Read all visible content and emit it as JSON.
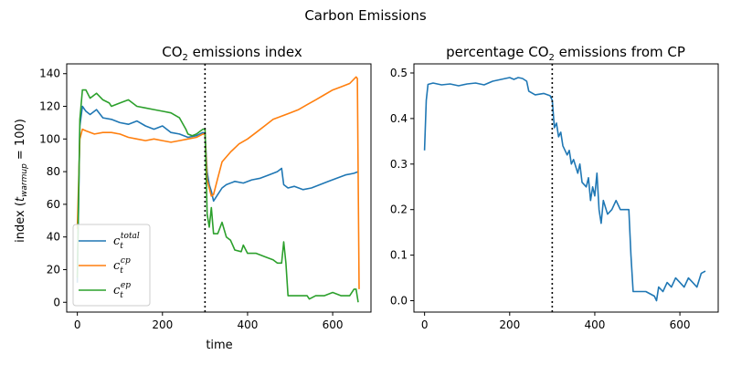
{
  "figure": {
    "suptitle": "Carbon Emissions"
  },
  "chart_data": [
    {
      "type": "line",
      "title": "CO₂ emissions index",
      "xlabel": "time",
      "ylabel": "index (t_warmup = 100)",
      "xlim": [
        -25,
        690
      ],
      "ylim": [
        -6,
        146
      ],
      "xticks": [
        0,
        200,
        400,
        600
      ],
      "yticks": [
        0,
        20,
        40,
        60,
        80,
        100,
        120,
        140
      ],
      "vline_x": 300,
      "legend_position": "lower-left",
      "grid": false,
      "series": [
        {
          "name": "c_t^total",
          "color": "#1f77b4",
          "x": [
            0,
            6,
            12,
            20,
            30,
            45,
            60,
            80,
            100,
            120,
            140,
            160,
            180,
            200,
            220,
            240,
            260,
            280,
            295,
            300,
            305,
            310,
            315,
            320,
            330,
            340,
            350,
            370,
            390,
            410,
            430,
            450,
            470,
            480,
            485,
            495,
            510,
            530,
            550,
            570,
            590,
            610,
            630,
            650,
            660
          ],
          "y": [
            12,
            108,
            120,
            117,
            115,
            118,
            113,
            112,
            110,
            109,
            111,
            108,
            106,
            108,
            104,
            103,
            101,
            102,
            104,
            103,
            80,
            72,
            68,
            62,
            66,
            70,
            72,
            74,
            73,
            75,
            76,
            78,
            80,
            82,
            72,
            70,
            71,
            69,
            70,
            72,
            74,
            76,
            78,
            79,
            80
          ]
        },
        {
          "name": "c_t^cp",
          "color": "#ff7f0e",
          "x": [
            0,
            6,
            12,
            20,
            40,
            60,
            80,
            100,
            120,
            140,
            160,
            180,
            200,
            220,
            240,
            260,
            280,
            295,
            300,
            305,
            310,
            315,
            320,
            330,
            340,
            360,
            380,
            400,
            420,
            440,
            460,
            480,
            500,
            520,
            540,
            560,
            580,
            600,
            620,
            640,
            655,
            658,
            662
          ],
          "y": [
            45,
            100,
            106,
            105,
            103,
            104,
            104,
            103,
            101,
            100,
            99,
            100,
            99,
            98,
            99,
            100,
            101,
            103,
            103,
            75,
            70,
            65,
            66,
            76,
            86,
            92,
            97,
            100,
            104,
            108,
            112,
            114,
            116,
            118,
            121,
            124,
            127,
            130,
            132,
            134,
            138,
            137,
            8
          ]
        },
        {
          "name": "c_t^ep",
          "color": "#2ca02c",
          "x": [
            0,
            6,
            12,
            20,
            30,
            45,
            60,
            75,
            80,
            100,
            120,
            140,
            160,
            180,
            200,
            220,
            240,
            255,
            260,
            270,
            280,
            295,
            300,
            305,
            310,
            315,
            320,
            330,
            340,
            350,
            360,
            370,
            385,
            390,
            400,
            420,
            440,
            460,
            470,
            480,
            485,
            490,
            495,
            505,
            520,
            540,
            545,
            560,
            580,
            600,
            620,
            640,
            650,
            655,
            660
          ],
          "y": [
            15,
            112,
            130,
            130,
            125,
            128,
            124,
            122,
            120,
            122,
            124,
            120,
            119,
            118,
            117,
            116,
            113,
            106,
            103,
            102,
            103,
            106,
            106,
            54,
            46,
            58,
            42,
            42,
            49,
            40,
            38,
            32,
            31,
            35,
            30,
            30,
            28,
            26,
            24,
            24,
            37,
            24,
            4,
            4,
            4,
            4,
            2,
            4,
            4,
            6,
            4,
            4,
            8,
            8,
            0
          ]
        }
      ]
    },
    {
      "type": "line",
      "title": "percentage CO₂ emissions from CP",
      "xlabel": "",
      "ylabel": "",
      "xlim": [
        -25,
        690
      ],
      "ylim": [
        -0.025,
        0.52
      ],
      "xticks": [
        0,
        200,
        400,
        600
      ],
      "yticks": [
        0.0,
        0.1,
        0.2,
        0.3,
        0.4,
        0.5
      ],
      "vline_x": 300,
      "grid": false,
      "series": [
        {
          "name": "",
          "color": "#1f77b4",
          "x": [
            0,
            4,
            8,
            20,
            40,
            60,
            80,
            100,
            120,
            140,
            160,
            180,
            200,
            210,
            220,
            230,
            240,
            245,
            260,
            280,
            295,
            300,
            305,
            310,
            315,
            320,
            325,
            335,
            340,
            345,
            350,
            360,
            365,
            370,
            380,
            385,
            390,
            395,
            400,
            405,
            410,
            415,
            420,
            430,
            440,
            450,
            460,
            470,
            480,
            485,
            490,
            500,
            520,
            540,
            545,
            550,
            560,
            570,
            580,
            590,
            600,
            610,
            620,
            630,
            640,
            650,
            660
          ],
          "y": [
            0.33,
            0.44,
            0.475,
            0.478,
            0.474,
            0.476,
            0.472,
            0.476,
            0.478,
            0.474,
            0.482,
            0.486,
            0.49,
            0.486,
            0.49,
            0.488,
            0.482,
            0.46,
            0.452,
            0.455,
            0.45,
            0.44,
            0.38,
            0.39,
            0.36,
            0.37,
            0.34,
            0.32,
            0.33,
            0.3,
            0.31,
            0.28,
            0.3,
            0.26,
            0.25,
            0.27,
            0.22,
            0.25,
            0.23,
            0.28,
            0.2,
            0.17,
            0.22,
            0.19,
            0.2,
            0.22,
            0.2,
            0.2,
            0.2,
            0.1,
            0.02,
            0.02,
            0.02,
            0.01,
            0.0,
            0.03,
            0.02,
            0.04,
            0.03,
            0.05,
            0.04,
            0.03,
            0.05,
            0.04,
            0.03,
            0.06,
            0.065
          ]
        }
      ]
    }
  ]
}
